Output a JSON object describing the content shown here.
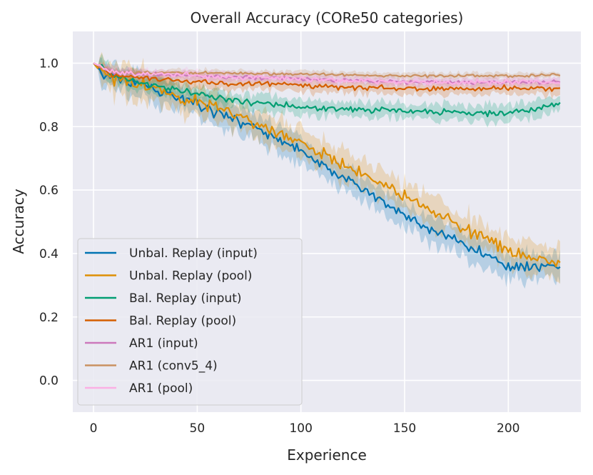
{
  "chart_data": {
    "type": "line",
    "title": "Overall Accuracy (CORe50 categories)",
    "xlabel": "Experience",
    "ylabel": "Accuracy",
    "xlim": [
      -10,
      235
    ],
    "ylim": [
      -0.1,
      1.1
    ],
    "xticks": [
      0,
      50,
      100,
      150,
      200
    ],
    "yticks": [
      0.0,
      0.2,
      0.4,
      0.6,
      0.8,
      1.0
    ],
    "xtick_labels": [
      "0",
      "50",
      "100",
      "150",
      "200"
    ],
    "ytick_labels": [
      "0.0",
      "0.2",
      "0.4",
      "0.6",
      "0.8",
      "1.0"
    ],
    "grid": true,
    "legend_position": "lower-left",
    "x_max": 225,
    "series": [
      {
        "name": "Unbal. Replay (input)",
        "color": "#0173b2",
        "anchors": [
          [
            0,
            1.0
          ],
          [
            5,
            0.96
          ],
          [
            25,
            0.93
          ],
          [
            50,
            0.87
          ],
          [
            75,
            0.81
          ],
          [
            100,
            0.72
          ],
          [
            125,
            0.62
          ],
          [
            150,
            0.52
          ],
          [
            175,
            0.44
          ],
          [
            200,
            0.36
          ],
          [
            225,
            0.36
          ]
        ],
        "noise": 0.025,
        "band": 0.04,
        "seed": 11
      },
      {
        "name": "Unbal. Replay (pool)",
        "color": "#de8f05",
        "anchors": [
          [
            0,
            1.0
          ],
          [
            5,
            0.96
          ],
          [
            25,
            0.93
          ],
          [
            50,
            0.88
          ],
          [
            75,
            0.82
          ],
          [
            100,
            0.75
          ],
          [
            125,
            0.67
          ],
          [
            150,
            0.58
          ],
          [
            175,
            0.49
          ],
          [
            200,
            0.41
          ],
          [
            225,
            0.36
          ]
        ],
        "noise": 0.03,
        "band": 0.045,
        "seed": 23
      },
      {
        "name": "Bal. Replay (input)",
        "color": "#029e73",
        "anchors": [
          [
            0,
            1.0
          ],
          [
            10,
            0.96
          ],
          [
            30,
            0.93
          ],
          [
            60,
            0.89
          ],
          [
            100,
            0.86
          ],
          [
            150,
            0.85
          ],
          [
            200,
            0.84
          ],
          [
            225,
            0.87
          ]
        ],
        "noise": 0.015,
        "band": 0.025,
        "seed": 37
      },
      {
        "name": "Bal. Replay (pool)",
        "color": "#d55e00",
        "anchors": [
          [
            0,
            1.0
          ],
          [
            10,
            0.96
          ],
          [
            50,
            0.94
          ],
          [
            100,
            0.93
          ],
          [
            150,
            0.92
          ],
          [
            200,
            0.92
          ],
          [
            225,
            0.92
          ]
        ],
        "noise": 0.012,
        "band": 0.018,
        "seed": 41
      },
      {
        "name": "AR1 (input)",
        "color": "#cc78bc",
        "anchors": [
          [
            0,
            1.0
          ],
          [
            10,
            0.97
          ],
          [
            50,
            0.96
          ],
          [
            100,
            0.95
          ],
          [
            150,
            0.94
          ],
          [
            200,
            0.94
          ],
          [
            225,
            0.94
          ]
        ],
        "noise": 0.008,
        "band": 0.012,
        "seed": 53
      },
      {
        "name": "AR1 (conv5_4)",
        "color": "#ca9161",
        "anchors": [
          [
            0,
            1.0
          ],
          [
            10,
            0.97
          ],
          [
            50,
            0.97
          ],
          [
            100,
            0.965
          ],
          [
            150,
            0.96
          ],
          [
            200,
            0.96
          ],
          [
            225,
            0.965
          ]
        ],
        "noise": 0.006,
        "band": 0.01,
        "seed": 67
      },
      {
        "name": "AR1 (pool)",
        "color": "#fbafe4",
        "anchors": [
          [
            0,
            1.0
          ],
          [
            10,
            0.97
          ],
          [
            50,
            0.96
          ],
          [
            100,
            0.95
          ],
          [
            150,
            0.94
          ],
          [
            200,
            0.94
          ],
          [
            225,
            0.94
          ]
        ],
        "noise": 0.012,
        "band": 0.015,
        "seed": 79
      }
    ]
  }
}
